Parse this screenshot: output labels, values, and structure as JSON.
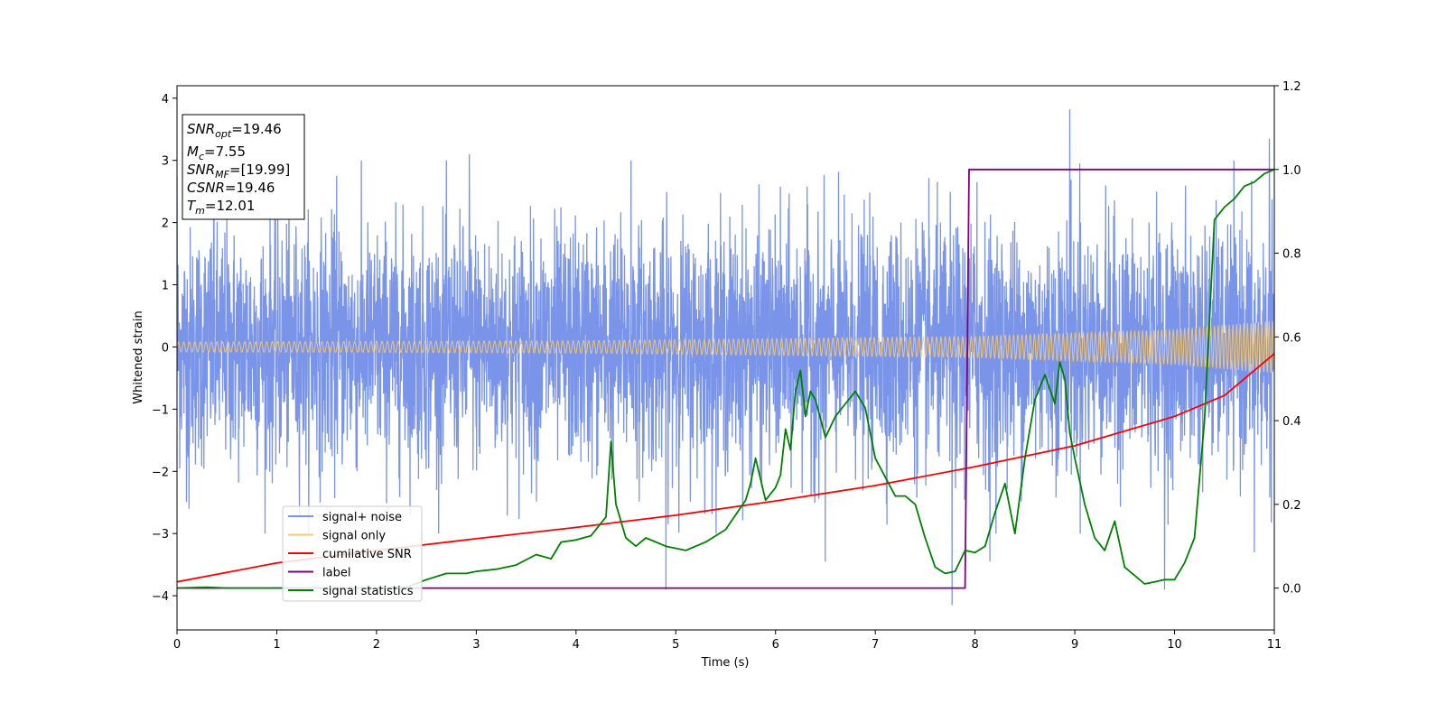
{
  "chart_data": {
    "type": "line",
    "xlabel": "Time (s)",
    "ylabel": "Whitened strain",
    "xlim": [
      0,
      11
    ],
    "ylim": [
      -4.55,
      4.2
    ],
    "y2lim": [
      -0.1,
      1.2
    ],
    "x_ticks": [
      "0",
      "1",
      "2",
      "3",
      "4",
      "5",
      "6",
      "7",
      "8",
      "9",
      "10",
      "11"
    ],
    "y_ticks": [
      "−4",
      "−3",
      "−2",
      "−1",
      "0",
      "1",
      "2",
      "3",
      "4"
    ],
    "y2_ticks": [
      "0.0",
      "0.2",
      "0.4",
      "0.6",
      "0.8",
      "1.0",
      "1.2"
    ],
    "legend_position": "lower-left",
    "annotation": {
      "lines": [
        {
          "sym": "SNR",
          "sub": "opt",
          "rest": "=19.46"
        },
        {
          "sym": "M",
          "sub": "c",
          "rest": "=7.55"
        },
        {
          "sym": "SNR",
          "sub": "MF",
          "rest": "=[19.99]"
        },
        {
          "sym": "CSNR",
          "sub": "",
          "rest": "=19.46"
        },
        {
          "sym": "T",
          "sub": "m",
          "rest": "=12.01"
        }
      ]
    },
    "series": [
      {
        "name": "signal+ noise",
        "color": "#7994e8",
        "axis": "left",
        "kind": "noise",
        "sigma": 0.95,
        "t": [
          0.0,
          0.12,
          0.37,
          1.6,
          2.93,
          4.55,
          4.9,
          6.5,
          7.77,
          8.02,
          8.15,
          8.95,
          9.05,
          9.9,
          10.8,
          10.95
        ],
        "v": [
          2.75,
          -2.6,
          2.55,
          2.75,
          3.1,
          3.0,
          -3.9,
          -3.45,
          -4.15,
          2.65,
          -3.45,
          3.82,
          2.95,
          -3.9,
          -3.3,
          3.35
        ]
      },
      {
        "name": "signal only",
        "color": "#f5c978",
        "axis": "left",
        "kind": "chirp",
        "amp": [
          [
            0,
            0.08
          ],
          [
            4,
            0.1
          ],
          [
            8,
            0.17
          ],
          [
            10,
            0.28
          ],
          [
            11,
            0.42
          ]
        ]
      },
      {
        "name": "cumilative SNR",
        "color": "#ff0000",
        "axis": "right",
        "kind": "line",
        "x": [
          0,
          1,
          2,
          3,
          4,
          5,
          6,
          7,
          8,
          9,
          10,
          10.5,
          11
        ],
        "y": [
          0.015,
          0.06,
          0.09,
          0.118,
          0.145,
          0.174,
          0.208,
          0.245,
          0.29,
          0.34,
          0.41,
          0.46,
          0.56
        ]
      },
      {
        "name": "label",
        "color": "#800080",
        "axis": "right",
        "kind": "line",
        "x": [
          0,
          7.9,
          7.94,
          11
        ],
        "y": [
          0,
          0,
          1,
          1
        ]
      },
      {
        "name": "signal statistics",
        "color": "#008000",
        "axis": "right",
        "kind": "line",
        "x": [
          0,
          0.3,
          0.5,
          1.0,
          1.5,
          2.0,
          2.3,
          2.5,
          2.7,
          2.9,
          3.0,
          3.2,
          3.4,
          3.6,
          3.75,
          3.85,
          4.0,
          4.15,
          4.3,
          4.35,
          4.4,
          4.5,
          4.6,
          4.7,
          4.9,
          5.1,
          5.3,
          5.5,
          5.7,
          5.75,
          5.8,
          5.9,
          6.0,
          6.05,
          6.1,
          6.15,
          6.2,
          6.25,
          6.3,
          6.35,
          6.4,
          6.5,
          6.6,
          6.7,
          6.8,
          6.9,
          7.0,
          7.2,
          7.3,
          7.4,
          7.5,
          7.6,
          7.7,
          7.8,
          7.9,
          8.0,
          8.1,
          8.2,
          8.3,
          8.4,
          8.5,
          8.6,
          8.7,
          8.8,
          8.85,
          8.9,
          8.95,
          9.0,
          9.1,
          9.2,
          9.3,
          9.4,
          9.5,
          9.6,
          9.7,
          9.8,
          9.9,
          10.0,
          10.1,
          10.2,
          10.3,
          10.4,
          10.5,
          10.6,
          10.7,
          10.8,
          10.9,
          11.0
        ],
        "y": [
          0.0,
          0.002,
          0.0,
          0.0,
          0.0,
          0.0,
          0.002,
          0.02,
          0.035,
          0.035,
          0.04,
          0.045,
          0.055,
          0.08,
          0.07,
          0.11,
          0.115,
          0.125,
          0.17,
          0.35,
          0.2,
          0.12,
          0.1,
          0.12,
          0.1,
          0.09,
          0.11,
          0.14,
          0.21,
          0.25,
          0.31,
          0.21,
          0.24,
          0.27,
          0.38,
          0.33,
          0.47,
          0.52,
          0.41,
          0.47,
          0.45,
          0.36,
          0.41,
          0.44,
          0.47,
          0.43,
          0.31,
          0.22,
          0.22,
          0.2,
          0.12,
          0.05,
          0.035,
          0.04,
          0.09,
          0.085,
          0.1,
          0.18,
          0.25,
          0.13,
          0.31,
          0.45,
          0.51,
          0.44,
          0.54,
          0.5,
          0.37,
          0.31,
          0.2,
          0.12,
          0.09,
          0.16,
          0.05,
          0.03,
          0.01,
          0.015,
          0.02,
          0.02,
          0.06,
          0.12,
          0.4,
          0.88,
          0.91,
          0.93,
          0.96,
          0.97,
          0.99,
          1.0
        ]
      }
    ]
  }
}
